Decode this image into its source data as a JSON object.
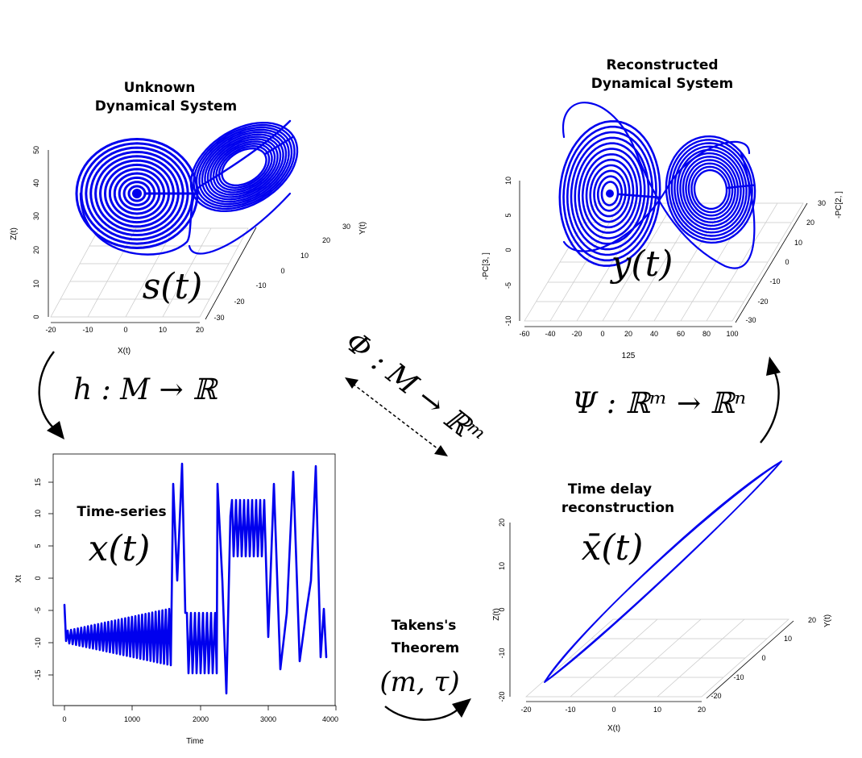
{
  "panels": {
    "unknown": {
      "title_line1": "Unknown",
      "title_line2": "Dynamical System",
      "symbol": "s(t)",
      "zlabel": "Z(t)",
      "xlabel": "X(t)",
      "ylabel": "Y(t)",
      "zticks": [
        "0",
        "10",
        "20",
        "30",
        "40",
        "50"
      ],
      "xticks": [
        "-20",
        "-10",
        "0",
        "10",
        "20"
      ],
      "yticks": [
        "-30",
        "-20",
        "-10",
        "0",
        "10",
        "20",
        "30"
      ]
    },
    "reconstructed": {
      "title_line1": "Reconstructed",
      "title_line2": "Dynamical System",
      "symbol": "y(t)",
      "zlabel": "-PC[3, ]",
      "xlabel": "125",
      "ylabel": "-PC[2, ]",
      "zticks": [
        "-10",
        "-5",
        "0",
        "5",
        "10"
      ],
      "xticks": [
        "-60",
        "-40",
        "-20",
        "0",
        "20",
        "40",
        "60",
        "80",
        "100"
      ],
      "yticks": [
        "-30",
        "-20",
        "-10",
        "0",
        "10",
        "20",
        "30"
      ]
    },
    "timeseries": {
      "title": "Time-series",
      "symbol": "x(t)",
      "xlabel": "Time",
      "ylabel": "Xt",
      "xticks": [
        "0",
        "1000",
        "2000",
        "3000",
        "4000"
      ],
      "yticks": [
        "-15",
        "-10",
        "-5",
        "0",
        "5",
        "10",
        "15"
      ]
    },
    "delay": {
      "title_line1": "Time delay",
      "title_line2": "reconstruction",
      "symbol": "x̄(t)",
      "zlabel": "Z(t)",
      "xlabel": "X(t)",
      "ylabel": "Y(t)",
      "zticks": [
        "-20",
        "-10",
        "0",
        "10",
        "20"
      ],
      "xticks": [
        "-20",
        "-10",
        "0",
        "10",
        "20"
      ],
      "yticks": [
        "-20",
        "-10",
        "0",
        "10",
        "20"
      ]
    }
  },
  "maps": {
    "h": "h : M → ℝ",
    "phi": "Φ : M → ℝᵐ",
    "psi": "Ψ : ℝᵐ → ℝⁿ",
    "takens_line1": "Takens's",
    "takens_line2": "Theorem",
    "takens_params": "(m, τ)"
  },
  "colors": {
    "curve": "#0000ee",
    "grid": "#c8c8c8",
    "text": "#000000"
  }
}
